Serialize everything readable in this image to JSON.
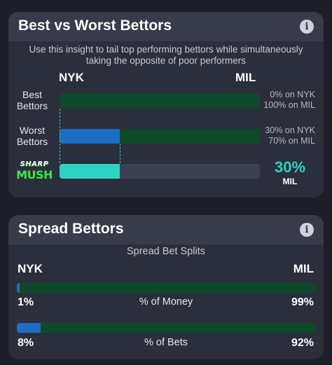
{
  "best_worst": {
    "title": "Best vs Worst Bettors",
    "subtitle": "Use this insight to tail top performing bettors while simultaneously taking the opposite of poor performers",
    "team_left": "NYK",
    "team_right": "MIL",
    "rows": [
      {
        "label_line1": "Best",
        "label_line2": "Bettors",
        "left_pct": 0,
        "left_text": "0% on NYK",
        "right_text": "100% on MIL"
      },
      {
        "label_line1": "Worst",
        "label_line2": "Bettors",
        "left_pct": 30,
        "left_text": "30% on NYK",
        "right_text": "70% on MIL"
      }
    ],
    "sharp": {
      "logo_top": "SHARP",
      "logo_bottom": "MUSH",
      "fill_pct": 30,
      "pct_text": "30%",
      "team": "MIL"
    }
  },
  "spread": {
    "title": "Spread Bettors",
    "caption": "Spread Bet Splits",
    "team_left": "NYK",
    "team_right": "MIL",
    "rows": [
      {
        "label": "% of Money",
        "left_pct": 1,
        "left_text": "1%",
        "right_text": "99%"
      },
      {
        "label": "% of Bets",
        "left_pct": 8,
        "left_text": "8%",
        "right_text": "92%"
      }
    ]
  },
  "colors": {
    "background": "#1c1e29",
    "card": "#2b2e3b",
    "header": "#383b49",
    "nyk_blue": "#1b6ec2",
    "mil_green": "#0e4a2a",
    "sharp_teal": "#2ed3c4",
    "logo_green": "#3fe04b"
  },
  "icons": {
    "info": "info-circle-icon"
  }
}
